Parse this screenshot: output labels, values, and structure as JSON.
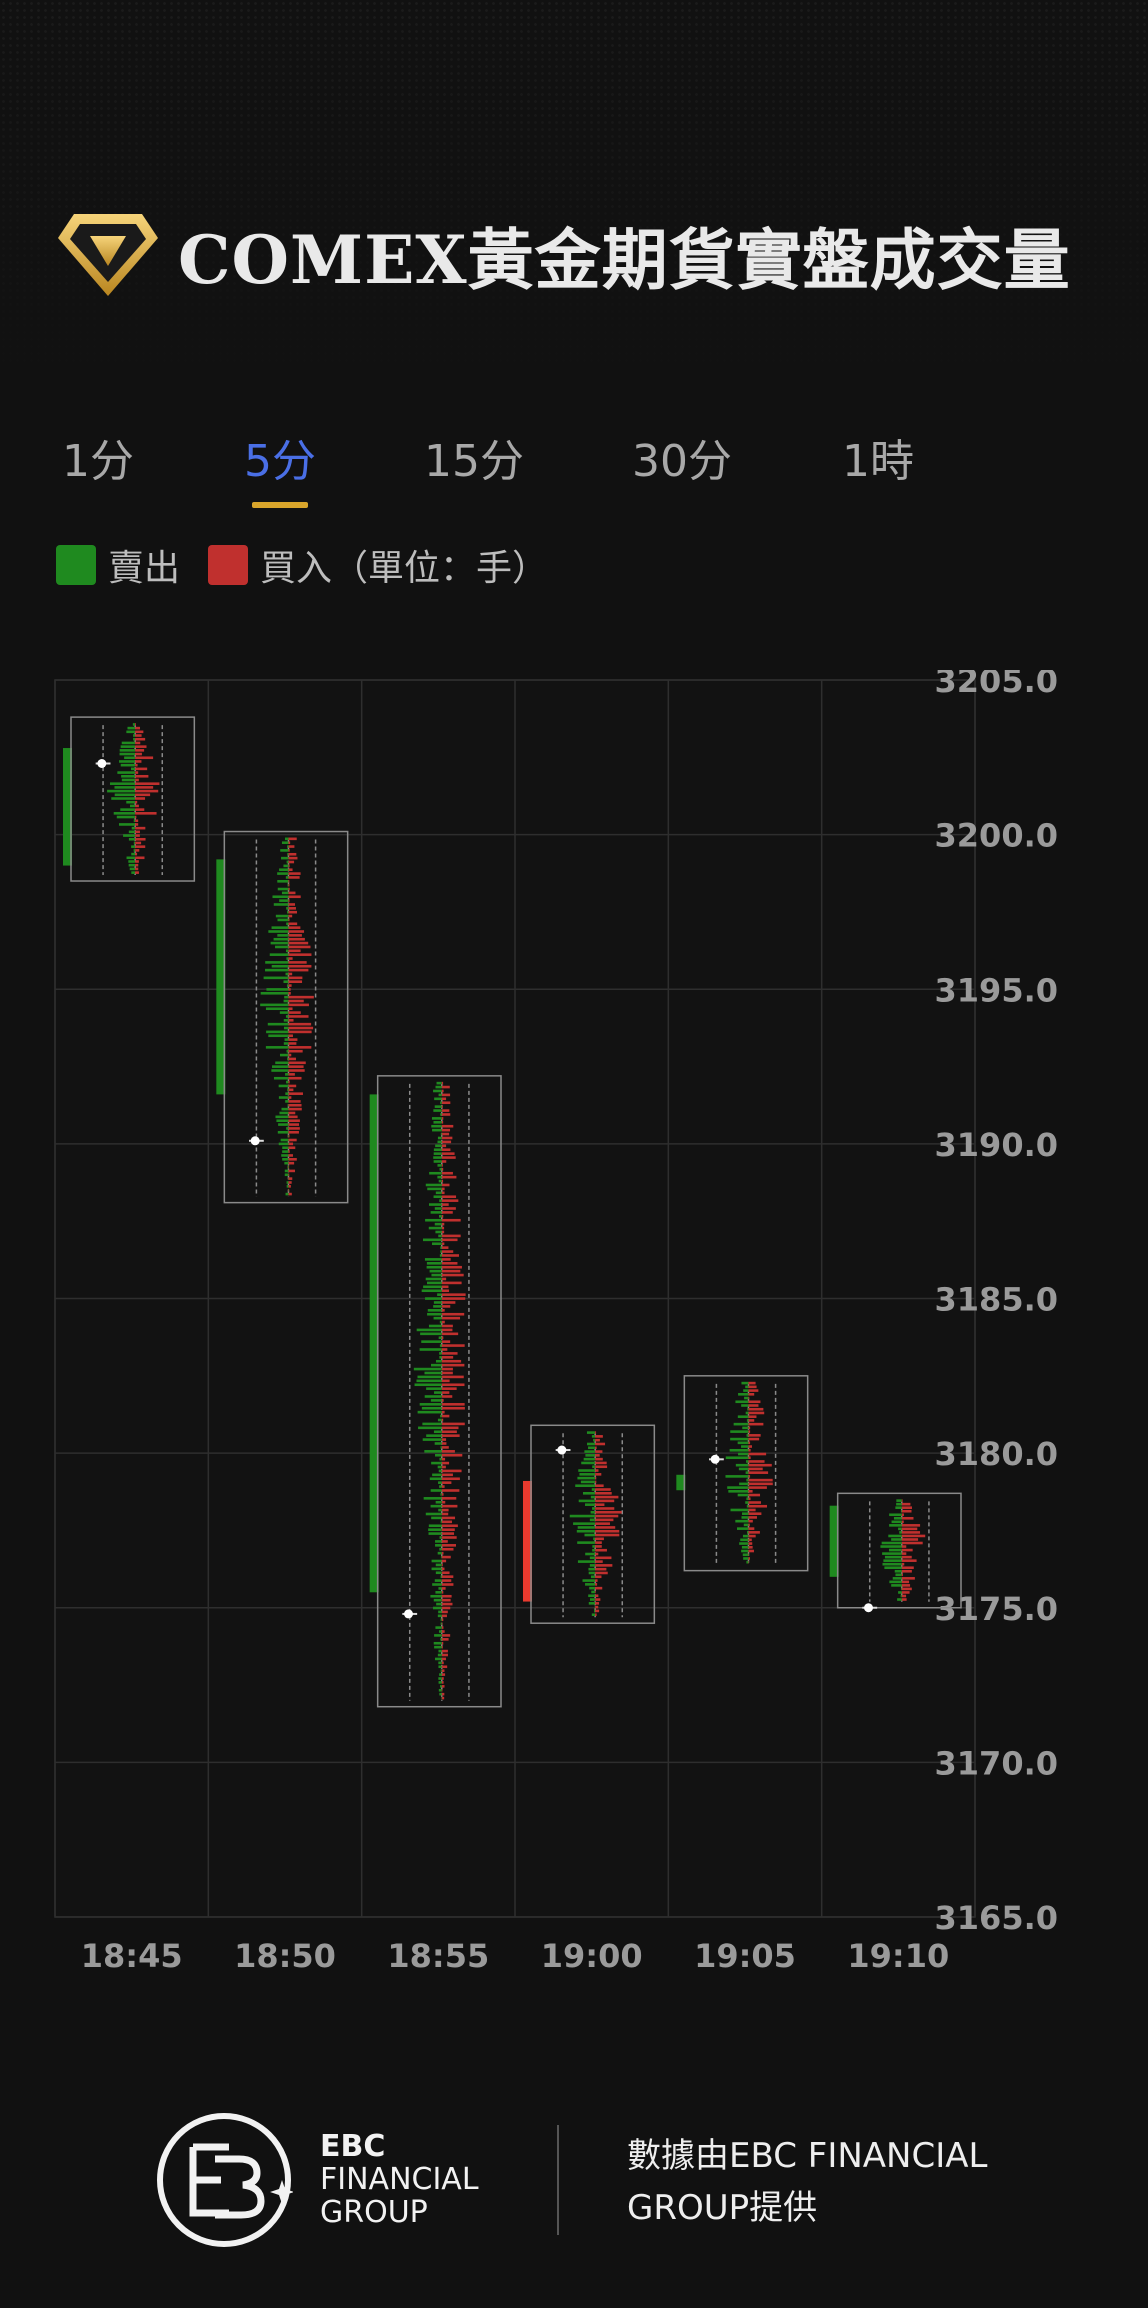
{
  "header": {
    "title": "COMEX黃金期貨實盤成交量",
    "logo_icon": "gold-diamond-icon"
  },
  "tabs": [
    {
      "label": "1分",
      "active": false
    },
    {
      "label": "5分",
      "active": true
    },
    {
      "label": "15分",
      "active": false
    },
    {
      "label": "30分",
      "active": false
    },
    {
      "label": "1時",
      "active": false
    }
  ],
  "legend": {
    "sell_label": "賣出",
    "buy_label": "買入（單位：手）",
    "sell_color": "#1f8a1f",
    "buy_color": "#c0302e"
  },
  "chart_data": {
    "type": "candlestick-volume-profile",
    "categories": [
      "18:45",
      "18:50",
      "18:55",
      "19:00",
      "19:05",
      "19:10"
    ],
    "y_ticks": [
      "3205.0",
      "3200.0",
      "3195.0",
      "3190.0",
      "3185.0",
      "3180.0",
      "3175.0",
      "3170.0",
      "3165.0"
    ],
    "ylim": [
      3165,
      3205
    ],
    "grid": true,
    "y_axis_position": "right",
    "candles": [
      {
        "time": "18:45",
        "open": 3202.8,
        "close": 3199.0,
        "high": 3203.8,
        "low": 3198.5,
        "poc": 3202.3,
        "direction": "down"
      },
      {
        "time": "18:50",
        "open": 3199.2,
        "close": 3191.6,
        "high": 3200.1,
        "low": 3188.1,
        "poc": 3190.1,
        "direction": "down"
      },
      {
        "time": "18:55",
        "open": 3191.6,
        "close": 3175.5,
        "high": 3192.2,
        "low": 3171.8,
        "poc": 3174.8,
        "direction": "down"
      },
      {
        "time": "19:00",
        "open": 3175.2,
        "close": 3179.1,
        "high": 3180.9,
        "low": 3174.5,
        "poc": 3180.1,
        "direction": "up"
      },
      {
        "time": "19:05",
        "open": 3179.3,
        "close": 3178.8,
        "high": 3182.5,
        "low": 3176.2,
        "poc": 3179.8,
        "direction": "down"
      },
      {
        "time": "19:10",
        "open": 3178.3,
        "close": 3176.0,
        "high": 3178.7,
        "low": 3175.0,
        "poc": 3175.0,
        "direction": "down"
      }
    ],
    "colors": {
      "down": "#1f8a1f",
      "up": "#e83a2e",
      "sell": "#1f8a1f",
      "buy": "#c0302e"
    }
  },
  "footer": {
    "brand_line1": "EBC",
    "brand_line2": "FINANCIAL",
    "brand_line3": "GROUP",
    "provider_line1": "數據由EBC FINANCIAL",
    "provider_line2": "GROUP提供",
    "logo_icon": "ebc-logo-icon"
  }
}
